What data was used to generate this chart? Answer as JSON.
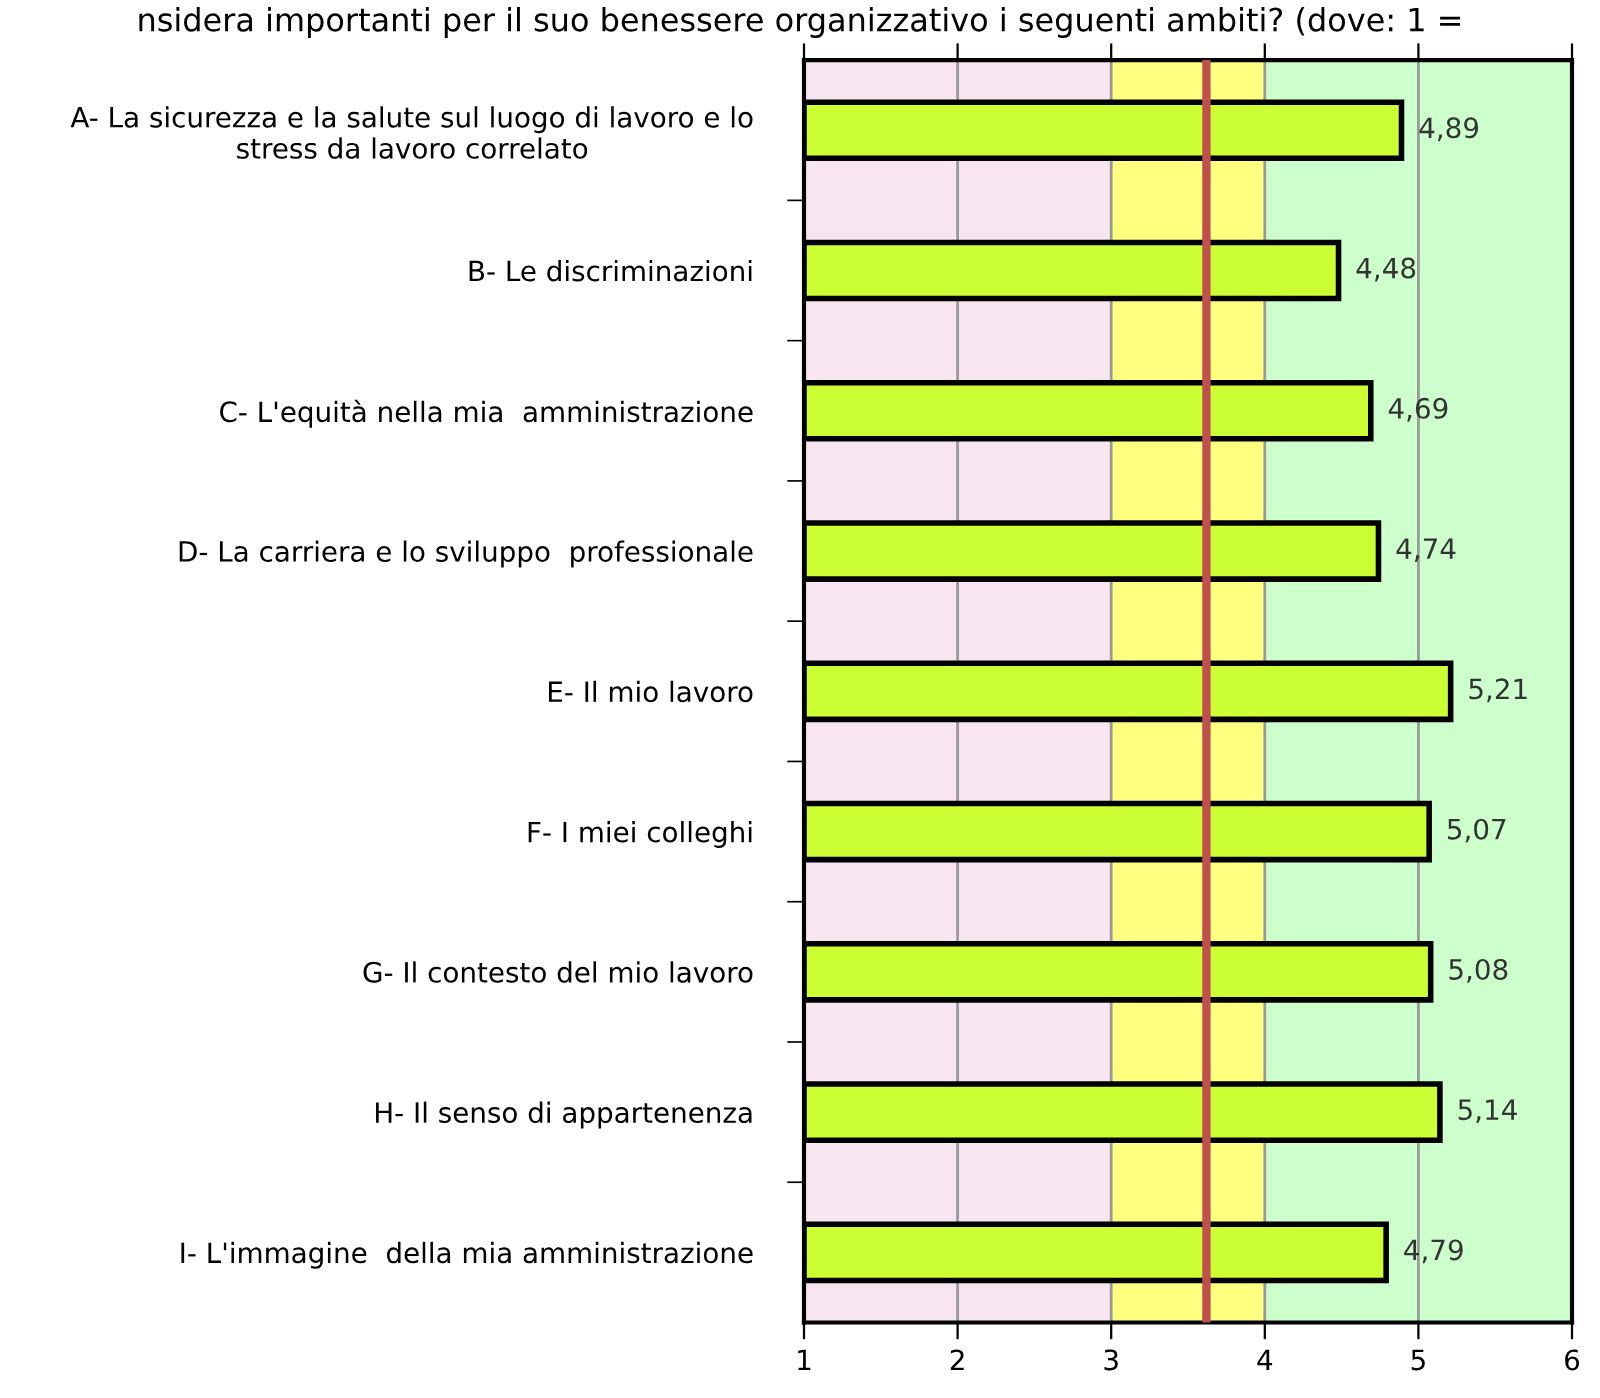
{
  "chart_data": {
    "type": "bar",
    "orientation": "horizontal",
    "title": "nsidera importanti per il suo benessere organizzativo i seguenti ambiti? (dove: 1 =",
    "categories": [
      "A- La sicurezza e la salute sul luogo di lavoro e lo\nstress da lavoro correlato",
      "B- Le discriminazioni",
      "C- L'equità nella mia  amministrazione",
      "D- La carriera e lo sviluppo  professionale",
      "E- Il mio lavoro",
      "F- I miei colleghi",
      "G- Il contesto del mio lavoro",
      "H- Il senso di appartenenza",
      "I- L'immagine  della mia amministrazione"
    ],
    "values": [
      4.89,
      4.48,
      4.69,
      4.74,
      5.21,
      5.07,
      5.08,
      5.14,
      4.79
    ],
    "value_labels": [
      "4,89",
      "4,48",
      "4,69",
      "4,74",
      "5,21",
      "5,07",
      "5,08",
      "5,14",
      "4,79"
    ],
    "color": "#ccff33",
    "xlim": [
      1,
      6
    ],
    "xticks": [
      1,
      2,
      3,
      4,
      5,
      6
    ],
    "grid": "x",
    "legend": false,
    "bands": [
      {
        "axis": "x",
        "from": 1,
        "to": 3,
        "color": "#f7e6f0"
      },
      {
        "axis": "x",
        "from": 3,
        "to": 4,
        "color": "#ffff80"
      },
      {
        "axis": "x",
        "from": 4,
        "to": 6,
        "color": "#ccffcc"
      }
    ],
    "ref_lines": [
      {
        "axis": "x",
        "value": 3.62,
        "color": "#c0504d"
      }
    ]
  }
}
